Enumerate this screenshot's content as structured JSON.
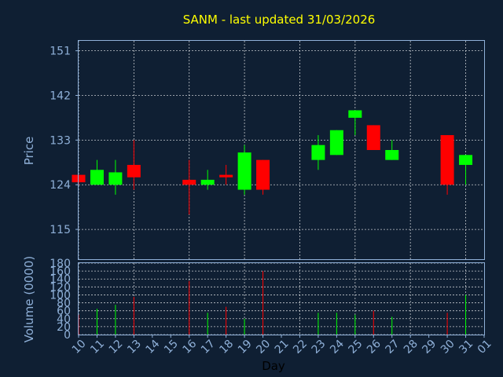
{
  "chart_data": [
    {
      "type": "candlestick",
      "title": "SANM - last updated 31/03/2026",
      "ylabel": "Price",
      "ylim": [
        109,
        153
      ],
      "yticks": [
        115,
        124,
        133,
        142,
        151
      ],
      "grid": true,
      "colors": {
        "up": "#00ff00",
        "down": "#ff0000"
      },
      "x": [
        "10",
        "11",
        "12",
        "13",
        "16",
        "17",
        "18",
        "19",
        "20",
        "23",
        "24",
        "25",
        "26",
        "27",
        "30",
        "31"
      ],
      "open": [
        126.0,
        124.0,
        124.0,
        128.0,
        125.0,
        124.0,
        126.0,
        123.0,
        129.0,
        129.0,
        130.0,
        137.5,
        136.0,
        129.0,
        134.0,
        128.0
      ],
      "high": [
        126.0,
        129.0,
        129.0,
        133.0,
        129.0,
        127.0,
        128.0,
        132.0,
        129.0,
        134.0,
        135.0,
        139.0,
        136.0,
        133.0,
        134.0,
        130.0
      ],
      "low": [
        124.0,
        124.0,
        122.0,
        123.0,
        118.0,
        123.0,
        124.0,
        122.0,
        122.0,
        127.0,
        130.0,
        134.0,
        131.0,
        129.0,
        122.0,
        124.0
      ],
      "close": [
        124.5,
        127.0,
        126.5,
        125.5,
        124.0,
        125.0,
        125.5,
        130.5,
        123.0,
        132.0,
        135.0,
        139.0,
        131.0,
        131.0,
        124.0,
        130.0
      ]
    },
    {
      "type": "bar",
      "ylabel": "Volume (0000)",
      "xlabel": "Day",
      "ylim": [
        0,
        180
      ],
      "yticks": [
        0,
        20,
        40,
        60,
        80,
        100,
        120,
        140,
        160,
        180
      ],
      "grid": true,
      "x": [
        "10",
        "11",
        "12",
        "13",
        "16",
        "17",
        "18",
        "19",
        "20",
        "23",
        "24",
        "25",
        "26",
        "27",
        "30",
        "31"
      ],
      "values": [
        50,
        65,
        75,
        95,
        135,
        55,
        70,
        40,
        160,
        55,
        55,
        50,
        60,
        45,
        55,
        100
      ],
      "direction": [
        "down",
        "up",
        "up",
        "down",
        "down",
        "up",
        "down",
        "up",
        "down",
        "up",
        "up",
        "up",
        "down",
        "up",
        "down",
        "up"
      ],
      "xticks": [
        "10",
        "11",
        "12",
        "13",
        "14",
        "15",
        "16",
        "17",
        "18",
        "19",
        "20",
        "21",
        "22",
        "23",
        "24",
        "25",
        "26",
        "27",
        "28",
        "29",
        "30",
        "31",
        "01"
      ]
    }
  ]
}
